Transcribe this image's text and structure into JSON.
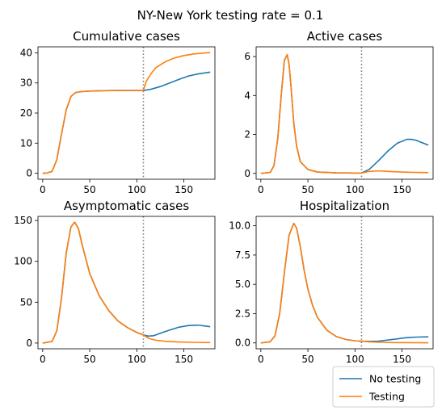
{
  "figure": {
    "suptitle": "NY-New York testing rate = 0.1"
  },
  "colors": {
    "no_testing": "#1f77b4",
    "testing": "#ff7f0e",
    "vline": "#808080"
  },
  "legend": {
    "placement": "bottom-right",
    "entries": [
      "No testing",
      "Testing"
    ]
  },
  "chart_data": [
    {
      "type": "line",
      "title": "Cumulative cases",
      "xlim": [
        -5,
        183
      ],
      "ylim": [
        -2,
        42
      ],
      "xticks": [
        0,
        50,
        100,
        150
      ],
      "yticks": [
        0,
        10,
        20,
        30,
        40
      ],
      "vline_x": 107,
      "series": [
        {
          "name": "No testing",
          "x": [
            0,
            5,
            10,
            15,
            20,
            25,
            30,
            35,
            40,
            50,
            60,
            80,
            100,
            107,
            115,
            125,
            135,
            145,
            155,
            165,
            178
          ],
          "y": [
            0,
            0.1,
            0.6,
            4.5,
            13,
            21,
            25.5,
            26.8,
            27.1,
            27.3,
            27.4,
            27.5,
            27.5,
            27.5,
            27.9,
            28.8,
            30,
            31.2,
            32.3,
            33,
            33.6
          ]
        },
        {
          "name": "Testing",
          "x": [
            0,
            5,
            10,
            15,
            20,
            25,
            30,
            35,
            40,
            50,
            60,
            80,
            100,
            107,
            110,
            115,
            120,
            130,
            140,
            150,
            160,
            170,
            178
          ],
          "y": [
            0,
            0.1,
            0.6,
            4.5,
            13,
            21,
            25.5,
            26.8,
            27.1,
            27.3,
            27.4,
            27.5,
            27.5,
            27.5,
            30.5,
            33,
            35,
            37,
            38.3,
            39.1,
            39.6,
            39.9,
            40.1
          ]
        }
      ]
    },
    {
      "type": "line",
      "title": "Active cases",
      "xlim": [
        -5,
        183
      ],
      "ylim": [
        -0.3,
        6.5
      ],
      "xticks": [
        0,
        50,
        100,
        150
      ],
      "yticks": [
        0,
        2,
        4,
        6
      ],
      "vline_x": 107,
      "series": [
        {
          "name": "No testing",
          "x": [
            0,
            10,
            14,
            18,
            22,
            25,
            28,
            30,
            32,
            35,
            38,
            42,
            50,
            60,
            80,
            100,
            107,
            115,
            125,
            135,
            145,
            155,
            160,
            165,
            170,
            178
          ],
          "y": [
            0,
            0.05,
            0.4,
            1.8,
            4.2,
            5.8,
            6.1,
            5.6,
            4.5,
            2.6,
            1.4,
            0.6,
            0.2,
            0.07,
            0.03,
            0.02,
            0.02,
            0.2,
            0.65,
            1.15,
            1.55,
            1.75,
            1.75,
            1.7,
            1.6,
            1.45
          ]
        },
        {
          "name": "Testing",
          "x": [
            0,
            10,
            14,
            18,
            22,
            25,
            28,
            30,
            32,
            35,
            38,
            42,
            50,
            60,
            80,
            100,
            107,
            115,
            125,
            135,
            150,
            165,
            178
          ],
          "y": [
            0,
            0.05,
            0.4,
            1.8,
            4.2,
            5.8,
            6.1,
            5.6,
            4.5,
            2.6,
            1.4,
            0.6,
            0.2,
            0.07,
            0.03,
            0.02,
            0.02,
            0.1,
            0.13,
            0.1,
            0.07,
            0.05,
            0.04
          ]
        }
      ]
    },
    {
      "type": "line",
      "title": "Asymptomatic cases",
      "xlim": [
        -5,
        183
      ],
      "ylim": [
        -7,
        155
      ],
      "xticks": [
        0,
        50,
        100,
        150
      ],
      "yticks": [
        0,
        50,
        100,
        150
      ],
      "vline_x": 107,
      "series": [
        {
          "name": "No testing",
          "x": [
            0,
            10,
            15,
            20,
            25,
            30,
            34,
            38,
            42,
            50,
            60,
            70,
            80,
            90,
            100,
            107,
            112,
            118,
            125,
            135,
            145,
            155,
            165,
            178
          ],
          "y": [
            0,
            2,
            15,
            55,
            110,
            142,
            148,
            140,
            120,
            85,
            58,
            40,
            27,
            19,
            13,
            10,
            8.5,
            9,
            12,
            16,
            19.5,
            21.5,
            22,
            20
          ]
        },
        {
          "name": "Testing",
          "x": [
            0,
            10,
            15,
            20,
            25,
            30,
            34,
            38,
            42,
            50,
            60,
            70,
            80,
            90,
            100,
            107,
            112,
            120,
            130,
            145,
            160,
            178
          ],
          "y": [
            0,
            2,
            15,
            55,
            110,
            142,
            148,
            140,
            120,
            85,
            58,
            40,
            27,
            19,
            13,
            10,
            6,
            3.5,
            2.2,
            1.3,
            0.9,
            0.6
          ]
        }
      ]
    },
    {
      "type": "line",
      "title": "Hospitalization",
      "xlim": [
        -5,
        183
      ],
      "ylim": [
        -0.5,
        10.8
      ],
      "xticks": [
        0,
        50,
        100,
        150
      ],
      "yticks": [
        0.0,
        2.5,
        5.0,
        7.5,
        10.0
      ],
      "vline_x": 107,
      "series": [
        {
          "name": "No testing",
          "x": [
            0,
            10,
            15,
            20,
            25,
            30,
            35,
            38,
            42,
            46,
            50,
            55,
            60,
            70,
            80,
            90,
            100,
            107,
            115,
            125,
            135,
            145,
            155,
            165,
            178
          ],
          "y": [
            0,
            0.1,
            0.6,
            2.5,
            6,
            9.2,
            10.2,
            9.8,
            8.2,
            6.2,
            4.6,
            3.2,
            2.2,
            1.1,
            0.55,
            0.3,
            0.18,
            0.15,
            0.13,
            0.15,
            0.25,
            0.35,
            0.45,
            0.5,
            0.52
          ]
        },
        {
          "name": "Testing",
          "x": [
            0,
            10,
            15,
            20,
            25,
            30,
            35,
            38,
            42,
            46,
            50,
            55,
            60,
            70,
            80,
            90,
            100,
            107,
            115,
            125,
            140,
            160,
            178
          ],
          "y": [
            0,
            0.1,
            0.6,
            2.5,
            6,
            9.2,
            10.2,
            9.8,
            8.2,
            6.2,
            4.6,
            3.2,
            2.2,
            1.1,
            0.55,
            0.3,
            0.18,
            0.15,
            0.1,
            0.06,
            0.03,
            0.02,
            0.01
          ]
        }
      ]
    }
  ]
}
